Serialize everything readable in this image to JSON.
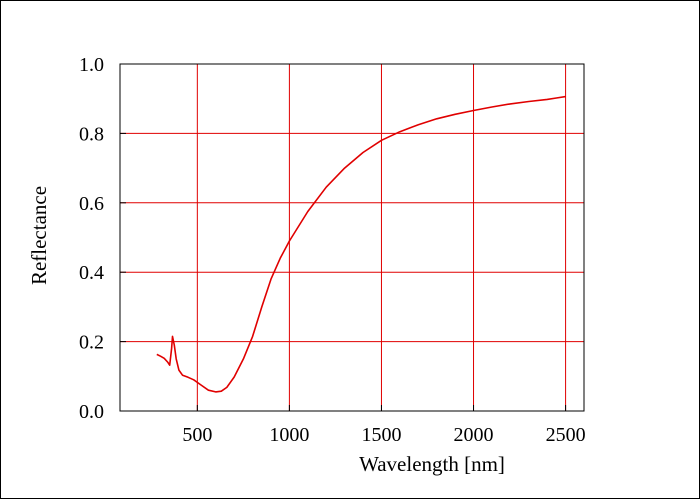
{
  "chart_data": {
    "type": "line",
    "title": "",
    "xlabel": "Wavelength [nm]",
    "ylabel": "Reflectance",
    "xlim": [
      80,
      2600
    ],
    "ylim": [
      0.0,
      1.0
    ],
    "x_ticks": [
      500,
      1000,
      1500,
      2000,
      2500
    ],
    "x_tick_labels": [
      "500",
      "1000",
      "1500",
      "2000",
      "2500"
    ],
    "y_ticks": [
      0.0,
      0.2,
      0.4,
      0.6,
      0.8,
      1.0
    ],
    "y_tick_labels": [
      "0.0",
      "0.2",
      "0.4",
      "0.6",
      "0.8",
      "1.0"
    ],
    "grid": true,
    "grid_color": "#e00000",
    "line_color": "#e00000",
    "series": [
      {
        "x": [
          280,
          300,
          320,
          340,
          350,
          360,
          365,
          375,
          385,
          400,
          420,
          450,
          480,
          520,
          560,
          600,
          630,
          660,
          700,
          750,
          800,
          850,
          900,
          950,
          1000,
          1100,
          1200,
          1300,
          1400,
          1500,
          1600,
          1700,
          1800,
          1900,
          2000,
          2100,
          2200,
          2300,
          2400,
          2450,
          2500
        ],
        "y": [
          0.163,
          0.158,
          0.152,
          0.14,
          0.132,
          0.18,
          0.215,
          0.19,
          0.15,
          0.118,
          0.103,
          0.097,
          0.09,
          0.075,
          0.06,
          0.055,
          0.057,
          0.068,
          0.098,
          0.15,
          0.215,
          0.3,
          0.38,
          0.44,
          0.49,
          0.575,
          0.645,
          0.7,
          0.745,
          0.78,
          0.805,
          0.825,
          0.842,
          0.855,
          0.866,
          0.876,
          0.885,
          0.892,
          0.898,
          0.902,
          0.906
        ]
      }
    ]
  }
}
